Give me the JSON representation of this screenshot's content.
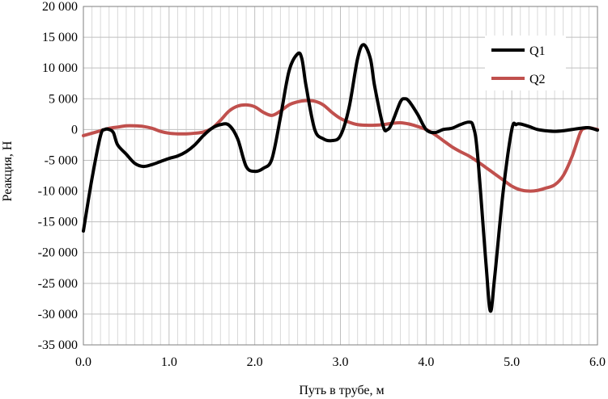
{
  "colors": {
    "q1": "#000000",
    "q2": "#c0504d",
    "grid": "#bfbfbf"
  },
  "chart_data": {
    "type": "line",
    "xlabel": "Путь в трубе, м",
    "ylabel": "Реакция, Н",
    "xlim": [
      0,
      6
    ],
    "ylim": [
      -35000,
      20000
    ],
    "x_ticks": [
      "0.0",
      "1.0",
      "2.0",
      "3.0",
      "4.0",
      "5.0",
      "6.0"
    ],
    "y_ticks": [
      "20 000",
      "15 000",
      "10 000",
      "5 000",
      "0",
      "-5 000",
      "-10 000",
      "-15 000",
      "-20 000",
      "-25 000",
      "-30 000",
      "-35 000"
    ],
    "grid": true,
    "legend": "top-right",
    "series": [
      {
        "name": "Q1",
        "color": "#000000",
        "x": [
          0.0,
          0.1,
          0.2,
          0.25,
          0.3,
          0.35,
          0.4,
          0.5,
          0.6,
          0.7,
          0.8,
          0.9,
          1.0,
          1.1,
          1.2,
          1.3,
          1.4,
          1.5,
          1.6,
          1.7,
          1.8,
          1.9,
          2.0,
          2.1,
          2.2,
          2.3,
          2.4,
          2.5,
          2.55,
          2.6,
          2.7,
          2.8,
          2.9,
          3.0,
          3.1,
          3.2,
          3.27,
          3.35,
          3.4,
          3.5,
          3.55,
          3.6,
          3.7,
          3.75,
          3.8,
          3.9,
          4.0,
          4.1,
          4.2,
          4.3,
          4.4,
          4.5,
          4.55,
          4.6,
          4.7,
          4.75,
          4.8,
          4.9,
          5.0,
          5.05,
          5.1,
          5.2,
          5.3,
          5.4,
          5.5,
          5.6,
          5.7,
          5.8,
          5.9,
          6.0
        ],
        "values": [
          -16500,
          -8000,
          -1000,
          0,
          0,
          -500,
          -2500,
          -4000,
          -5500,
          -6000,
          -5700,
          -5200,
          -4700,
          -4300,
          -3600,
          -2500,
          -1000,
          200,
          800,
          700,
          -1500,
          -6000,
          -6800,
          -6300,
          -4800,
          2000,
          9500,
          12300,
          11500,
          7000,
          0,
          -1500,
          -1800,
          -1000,
          3500,
          11500,
          13800,
          11500,
          7000,
          500,
          0,
          1000,
          4500,
          5000,
          4600,
          2500,
          0,
          -500,
          0,
          200,
          800,
          1200,
          500,
          -4000,
          -22000,
          -29500,
          -24000,
          -10000,
          0,
          800,
          900,
          500,
          0,
          -200,
          -300,
          -200,
          0,
          200,
          300,
          -100
        ]
      },
      {
        "name": "Q2",
        "color": "#c0504d",
        "x": [
          0.0,
          0.1,
          0.2,
          0.3,
          0.4,
          0.5,
          0.6,
          0.7,
          0.8,
          0.9,
          1.0,
          1.1,
          1.2,
          1.3,
          1.4,
          1.5,
          1.6,
          1.7,
          1.8,
          1.9,
          2.0,
          2.1,
          2.2,
          2.3,
          2.4,
          2.5,
          2.6,
          2.7,
          2.8,
          2.9,
          3.0,
          3.1,
          3.2,
          3.3,
          3.4,
          3.5,
          3.6,
          3.7,
          3.8,
          3.9,
          4.0,
          4.1,
          4.2,
          4.3,
          4.4,
          4.5,
          4.6,
          4.7,
          4.8,
          4.9,
          5.0,
          5.1,
          5.2,
          5.3,
          5.4,
          5.5,
          5.6,
          5.7,
          5.8,
          5.85,
          5.9,
          6.0
        ],
        "values": [
          -1000,
          -600,
          -200,
          200,
          400,
          600,
          600,
          500,
          200,
          -300,
          -600,
          -700,
          -700,
          -600,
          -400,
          200,
          1500,
          3000,
          3800,
          4000,
          3700,
          2800,
          2300,
          3000,
          4000,
          4500,
          4700,
          4600,
          4000,
          2800,
          1800,
          1200,
          800,
          700,
          700,
          800,
          1000,
          1100,
          900,
          500,
          0,
          -800,
          -1800,
          -2800,
          -3600,
          -4300,
          -5200,
          -6200,
          -7200,
          -8200,
          -9200,
          -9800,
          -10000,
          -9900,
          -9500,
          -9000,
          -7500,
          -4500,
          -500,
          200,
          300,
          0
        ]
      }
    ]
  }
}
